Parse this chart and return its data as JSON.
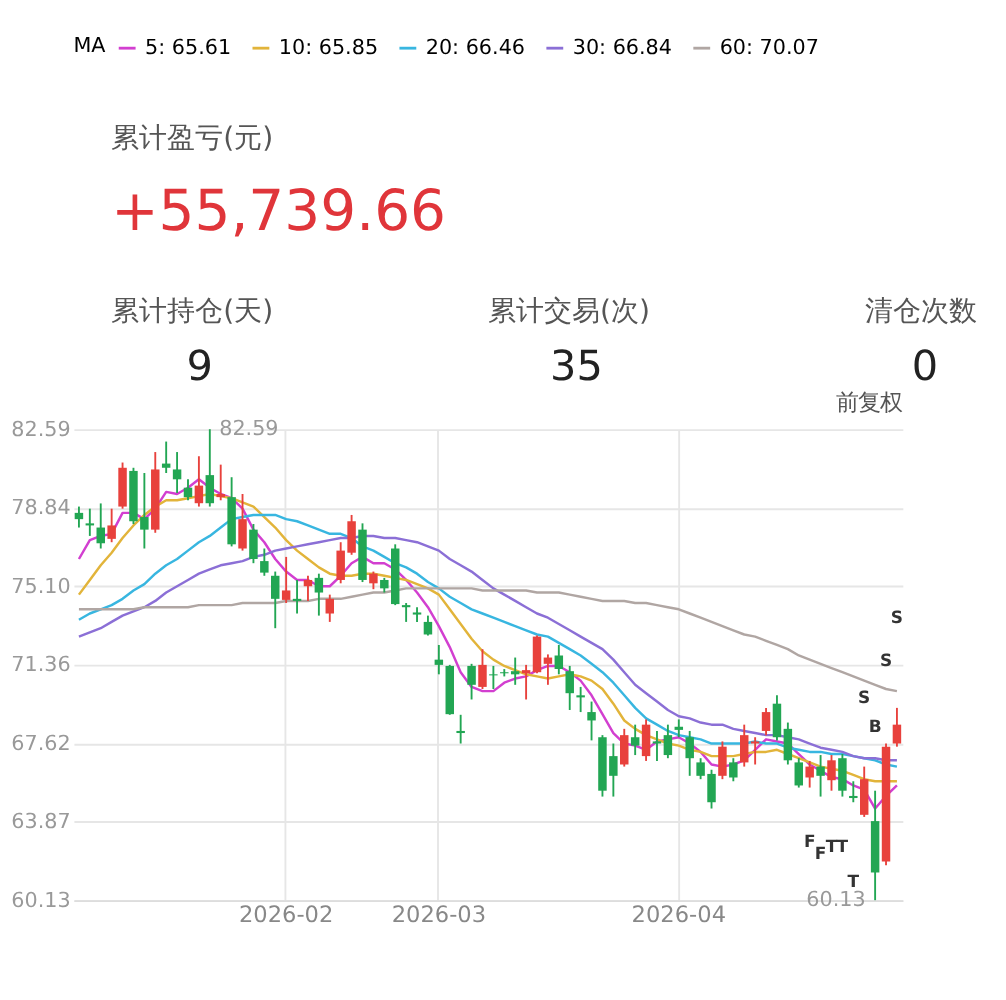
{
  "chart_data": [
    {
      "type": "other",
      "title": "累计盈亏(元)",
      "annotations": [
        "+55,739.66",
        "累计持仓(天)",
        "9",
        "累计交易(次)",
        "35",
        "清仓次数",
        "0"
      ]
    },
    {
      "type": "candlestick",
      "legend_title": "MA",
      "legend": "top",
      "grid": true,
      "categories": [
        null,
        null,
        null,
        null,
        null,
        null,
        null,
        null,
        null,
        null,
        null,
        null,
        null,
        null,
        null,
        null,
        null,
        null,
        null,
        "2026-02",
        null,
        null,
        null,
        null,
        null,
        null,
        null,
        null,
        null,
        null,
        null,
        null,
        null,
        "2026-03",
        null,
        null,
        null,
        null,
        null,
        null,
        null,
        null,
        null,
        null,
        null,
        null,
        null,
        null,
        null,
        null,
        null,
        null,
        null,
        null,
        null,
        "2026-04",
        null,
        null,
        null,
        null,
        null,
        null,
        null,
        null,
        null,
        null,
        null,
        null,
        null,
        null,
        null,
        null,
        null,
        null,
        null,
        null
      ],
      "ylim": [
        60.13,
        82.59
      ],
      "yticks": [
        60.13,
        63.87,
        67.62,
        71.36,
        {
          "value": 75.1,
          "label": "75.10"
        },
        78.84,
        82.59
      ],
      "ohlc": [
        [
          78.6,
          78.9,
          77.9,
          78.3
        ],
        [
          78.1,
          78.8,
          77.5,
          78.0
        ],
        [
          77.9,
          79.05,
          76.9,
          77.15
        ],
        [
          77.36,
          78.8,
          77.2,
          78.0
        ],
        [
          78.9,
          81.0,
          78.8,
          80.75
        ],
        [
          80.6,
          80.75,
          78.07,
          78.2
        ],
        [
          78.4,
          80.5,
          76.9,
          77.8
        ],
        [
          77.8,
          81.5,
          77.65,
          80.67
        ],
        [
          80.95,
          82.0,
          80.5,
          80.75
        ],
        [
          80.67,
          81.5,
          79.55,
          80.2
        ],
        [
          79.8,
          80.2,
          79.2,
          79.35
        ],
        [
          79.06,
          81.3,
          78.9,
          79.9
        ],
        [
          80.4,
          82.59,
          78.9,
          79.06
        ],
        [
          79.35,
          80.9,
          79.2,
          79.5
        ],
        [
          79.35,
          80.3,
          77.0,
          77.1
        ],
        [
          76.9,
          79.5,
          76.8,
          78.3
        ],
        [
          77.8,
          78.07,
          76.2,
          76.4
        ],
        [
          76.3,
          76.9,
          75.6,
          75.75
        ],
        [
          75.6,
          75.8,
          73.1,
          74.5
        ],
        [
          74.45,
          76.5,
          74.3,
          74.9
        ],
        [
          74.5,
          75.4,
          73.8,
          74.4
        ],
        [
          75.1,
          75.6,
          74.4,
          75.4
        ],
        [
          75.5,
          75.7,
          73.7,
          74.8
        ],
        [
          73.8,
          74.7,
          73.4,
          74.5
        ],
        [
          75.4,
          77.2,
          75.24,
          76.8
        ],
        [
          76.7,
          78.5,
          76.6,
          78.2
        ],
        [
          77.8,
          78.1,
          75.3,
          75.4
        ],
        [
          75.24,
          75.8,
          74.96,
          75.7
        ],
        [
          75.4,
          75.5,
          74.8,
          75.0
        ],
        [
          76.9,
          77.1,
          74.2,
          74.25
        ],
        [
          74.2,
          74.3,
          73.4,
          74.1
        ],
        [
          73.85,
          74.1,
          73.4,
          73.75
        ],
        [
          73.4,
          73.7,
          72.75,
          72.8
        ],
        [
          71.6,
          72.3,
          70.9,
          71.35
        ],
        [
          71.3,
          71.35,
          68.97,
          69.0
        ],
        [
          68.2,
          68.97,
          67.6,
          68.1
        ],
        [
          71.3,
          71.4,
          69.7,
          70.4
        ],
        [
          70.3,
          72.1,
          70.2,
          71.35
        ],
        [
          70.9,
          71.3,
          70.2,
          70.85
        ],
        [
          71.0,
          71.15,
          70.8,
          70.95
        ],
        [
          71.05,
          71.7,
          70.4,
          70.9
        ],
        [
          70.95,
          71.35,
          69.7,
          71.1
        ],
        [
          71.0,
          72.75,
          70.95,
          72.7
        ],
        [
          71.4,
          71.85,
          70.4,
          71.7
        ],
        [
          71.8,
          72.3,
          70.9,
          71.15
        ],
        [
          71.05,
          71.3,
          69.2,
          70.0
        ],
        [
          69.9,
          70.3,
          69.1,
          69.8
        ],
        [
          69.1,
          69.6,
          67.75,
          68.7
        ],
        [
          67.9,
          68.0,
          65.07,
          65.35
        ],
        [
          67.0,
          67.6,
          65.07,
          66.06
        ],
        [
          66.6,
          68.3,
          66.5,
          68.0
        ],
        [
          67.9,
          68.5,
          67.05,
          67.5
        ],
        [
          67.0,
          68.75,
          66.77,
          68.5
        ],
        [
          67.7,
          68.2,
          66.77,
          67.6
        ],
        [
          68.0,
          68.5,
          66.9,
          67.05
        ],
        [
          68.4,
          68.75,
          67.9,
          68.25
        ],
        [
          67.9,
          68.2,
          66.06,
          66.9
        ],
        [
          66.7,
          66.9,
          65.9,
          66.06
        ],
        [
          66.15,
          66.35,
          64.5,
          64.8
        ],
        [
          66.06,
          67.7,
          65.9,
          67.45
        ],
        [
          66.7,
          66.9,
          65.8,
          65.98
        ],
        [
          66.7,
          68.5,
          66.5,
          68.0
        ],
        [
          67.6,
          67.9,
          66.6,
          67.7
        ],
        [
          68.2,
          69.3,
          68.0,
          69.1
        ],
        [
          69.5,
          69.9,
          67.75,
          67.9
        ],
        [
          68.3,
          68.6,
          66.6,
          66.8
        ],
        [
          66.7,
          66.9,
          65.5,
          65.6
        ],
        [
          65.98,
          66.77,
          65.5,
          66.5
        ],
        [
          66.5,
          67.05,
          65.07,
          66.06
        ],
        [
          65.85,
          67.05,
          65.35,
          66.8
        ],
        [
          66.9,
          67.1,
          65.07,
          65.35
        ],
        [
          65.1,
          65.8,
          64.8,
          65.0
        ],
        [
          64.2,
          66.5,
          64.1,
          65.9
        ],
        [
          63.9,
          65.35,
          60.13,
          61.45
        ],
        [
          61.97,
          67.6,
          61.8,
          67.45
        ],
        [
          67.6,
          69.3,
          67.45,
          68.5
        ]
      ],
      "series": [
        {
          "name": "5: 65.61",
          "type": "line",
          "color": "#d23fd0",
          "values": [
            76.4,
            77.3,
            77.5,
            77.6,
            78.6,
            78.6,
            78.3,
            78.8,
            79.6,
            79.5,
            79.8,
            80.2,
            79.8,
            79.5,
            79.3,
            78.8,
            77.8,
            77.2,
            76.4,
            75.8,
            75.4,
            75.4,
            75.1,
            75.1,
            75.6,
            76.2,
            76.5,
            76.2,
            76.2,
            75.9,
            75.4,
            74.8,
            74.1,
            73.2,
            72.2,
            71.0,
            70.3,
            70.1,
            70.1,
            70.5,
            70.7,
            70.8,
            71.1,
            71.3,
            71.3,
            71.0,
            70.6,
            69.9,
            69.0,
            68.1,
            67.6,
            67.5,
            67.3,
            67.7,
            67.8,
            67.9,
            67.6,
            67.2,
            66.6,
            66.5,
            66.6,
            66.8,
            67.3,
            67.8,
            67.7,
            67.6,
            67.1,
            66.6,
            66.3,
            66.0,
            65.9,
            65.6,
            65.4,
            64.5,
            65.1,
            65.6
          ]
        },
        {
          "name": "10: 65.85",
          "type": "line",
          "color": "#e2b43a",
          "values": [
            74.7,
            75.4,
            76.1,
            76.7,
            77.4,
            78.0,
            78.5,
            78.9,
            79.2,
            79.2,
            79.3,
            79.4,
            79.5,
            79.4,
            79.3,
            79.1,
            78.9,
            78.4,
            77.9,
            77.3,
            76.8,
            76.4,
            76.0,
            75.7,
            75.6,
            75.6,
            75.7,
            75.7,
            75.6,
            75.5,
            75.4,
            75.2,
            75.0,
            74.7,
            74.0,
            73.3,
            72.6,
            72.0,
            71.6,
            71.3,
            71.1,
            70.9,
            70.8,
            70.7,
            70.8,
            70.9,
            70.8,
            70.6,
            70.2,
            69.5,
            68.7,
            68.3,
            68.0,
            67.8,
            67.6,
            67.5,
            67.3,
            67.2,
            67.0,
            67.0,
            67.0,
            67.1,
            67.2,
            67.2,
            67.3,
            67.1,
            66.9,
            66.7,
            66.5,
            66.4,
            66.3,
            66.1,
            65.9,
            65.8,
            65.8,
            65.8
          ]
        },
        {
          "name": "20: 66.46",
          "type": "line",
          "color": "#38b6e0",
          "values": [
            73.5,
            73.8,
            74.0,
            74.2,
            74.5,
            74.9,
            75.2,
            75.7,
            76.1,
            76.4,
            76.8,
            77.2,
            77.5,
            77.9,
            78.3,
            78.4,
            78.5,
            78.5,
            78.5,
            78.3,
            78.2,
            78.0,
            77.8,
            77.6,
            77.6,
            77.4,
            77.0,
            76.8,
            76.5,
            76.2,
            76.0,
            75.7,
            75.3,
            75.0,
            74.6,
            74.3,
            74.0,
            73.8,
            73.6,
            73.4,
            73.2,
            73.0,
            72.8,
            72.7,
            72.4,
            72.1,
            71.8,
            71.4,
            71.0,
            70.5,
            69.9,
            69.3,
            68.8,
            68.5,
            68.2,
            68.0,
            67.9,
            67.8,
            67.6,
            67.6,
            67.6,
            67.6,
            67.7,
            67.6,
            67.6,
            67.4,
            67.3,
            67.2,
            67.2,
            67.1,
            67.1,
            67.0,
            66.9,
            66.8,
            66.6,
            66.5
          ]
        },
        {
          "name": "30: 66.84",
          "type": "line",
          "color": "#8b6fd6",
          "values": [
            72.7,
            72.9,
            73.1,
            73.4,
            73.7,
            73.9,
            74.1,
            74.4,
            74.8,
            75.1,
            75.4,
            75.7,
            75.9,
            76.1,
            76.2,
            76.3,
            76.5,
            76.6,
            76.8,
            76.9,
            77.0,
            77.1,
            77.2,
            77.3,
            77.4,
            77.4,
            77.5,
            77.5,
            77.4,
            77.4,
            77.3,
            77.2,
            77.0,
            76.8,
            76.4,
            76.1,
            75.8,
            75.4,
            75.0,
            74.7,
            74.4,
            74.1,
            73.8,
            73.6,
            73.3,
            73.0,
            72.7,
            72.4,
            72.1,
            71.6,
            71.0,
            70.4,
            70.0,
            69.6,
            69.2,
            68.9,
            68.8,
            68.6,
            68.5,
            68.5,
            68.3,
            68.2,
            68.1,
            68.0,
            68.0,
            67.9,
            67.8,
            67.6,
            67.4,
            67.3,
            67.2,
            67.0,
            66.9,
            66.9,
            66.8,
            66.8
          ]
        },
        {
          "name": "60: 70.07",
          "type": "line",
          "color": "#b0a6a3",
          "values": [
            74.0,
            74.0,
            74.0,
            74.0,
            74.0,
            74.0,
            74.1,
            74.1,
            74.1,
            74.1,
            74.1,
            74.2,
            74.2,
            74.2,
            74.2,
            74.3,
            74.3,
            74.3,
            74.3,
            74.4,
            74.4,
            74.4,
            74.5,
            74.5,
            74.5,
            74.6,
            74.7,
            74.8,
            74.8,
            74.9,
            75.0,
            75.0,
            75.0,
            75.0,
            75.0,
            75.0,
            75.0,
            74.9,
            74.9,
            74.9,
            74.9,
            74.9,
            74.8,
            74.8,
            74.8,
            74.7,
            74.6,
            74.5,
            74.4,
            74.4,
            74.4,
            74.3,
            74.3,
            74.2,
            74.1,
            74.0,
            73.8,
            73.6,
            73.4,
            73.2,
            73.0,
            72.8,
            72.7,
            72.5,
            72.3,
            72.1,
            71.8,
            71.6,
            71.4,
            71.2,
            71.0,
            70.8,
            70.6,
            70.4,
            70.2,
            70.1
          ]
        }
      ],
      "annotations": [
        "前复权",
        "82.59",
        "60.13",
        "F",
        "F",
        "T",
        "T",
        "T",
        "S",
        "B",
        "S",
        "S"
      ]
    }
  ]
}
